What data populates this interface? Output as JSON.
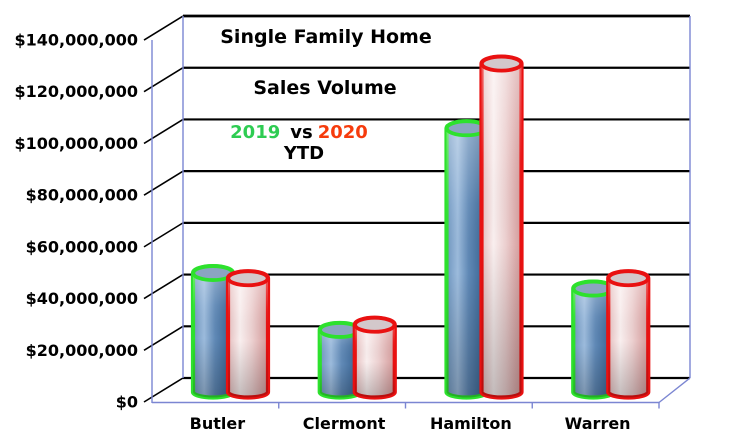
{
  "chart_data": {
    "type": "bar",
    "style": "3d-cylinder-columns",
    "title_line1": "Single Family Home",
    "title_line2": "Sales Volume",
    "legend": {
      "position": "top-center",
      "series1_label": "2019",
      "separator": "vs",
      "series2_label": "2020",
      "subtitle": "YTD",
      "series1_color": "#2ecc52",
      "series2_color": "#f63b0c"
    },
    "categories": [
      "Butler",
      "Clermont",
      "Hamilton",
      "Warren"
    ],
    "series": [
      {
        "name": "2019",
        "outline_color": "#2de12d",
        "fill": "blue-gradient",
        "values": [
          46000000,
          24000000,
          102000000,
          40000000
        ]
      },
      {
        "name": "2020",
        "outline_color": "#e91111",
        "fill": "pink-gradient",
        "values": [
          44000000,
          26000000,
          127000000,
          44000000
        ]
      }
    ],
    "y_axis": {
      "tick_labels": [
        "$0",
        "$20,000,000",
        "$40,000,000",
        "$60,000,000",
        "$80,000,000",
        "$100,000,000",
        "$120,000,000",
        "$140,000,000"
      ],
      "tick_values": [
        0,
        20000000,
        40000000,
        60000000,
        80000000,
        100000000,
        120000000,
        140000000
      ],
      "ylim": [
        0,
        140000000
      ],
      "gridlines": true
    },
    "colors": {
      "gridline": "#000000",
      "axis_frame": "#7b86d2",
      "blue_cap": "#8ba4c1",
      "pink_cap": "#d3c8cb",
      "text": "#000000",
      "background": "#ffffff"
    }
  }
}
